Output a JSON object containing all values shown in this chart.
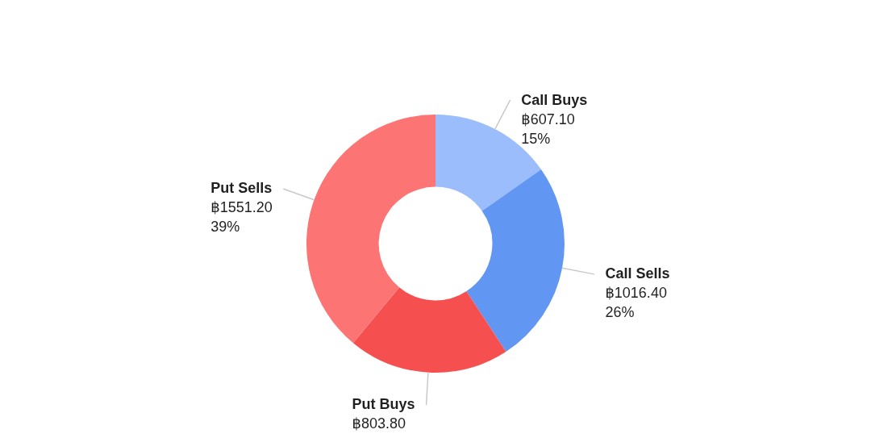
{
  "chart_data": {
    "type": "donut",
    "categories": [
      "Call Buys",
      "Call Sells",
      "Put Buys",
      "Put Sells"
    ],
    "values": [
      607.1,
      1016.4,
      803.8,
      1551.2
    ],
    "colors": [
      "#9bbdfb",
      "#6196f3",
      "#f64f50",
      "#fd7474"
    ],
    "value_labels": [
      "฿607.10\n15%",
      "฿1016.40\n26%",
      "฿803.80",
      "฿1551.20\n39%"
    ],
    "legend": false
  }
}
